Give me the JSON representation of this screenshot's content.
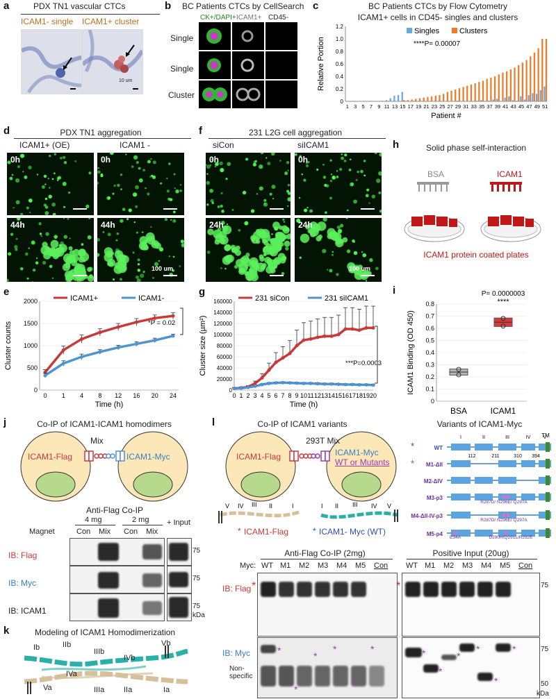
{
  "colors": {
    "red": "#c83a3a",
    "blue": "#4f93d0",
    "orange": "#ee7c2a",
    "lightblue": "#6aa9dd",
    "green": "#2d7f2d",
    "purple": "#9b3bb0",
    "teal": "#3bb0b0"
  },
  "a": {
    "letter": "a",
    "title": "PDX TN1 vascular CTCs",
    "img1_label": "ICAM1- single",
    "img2_label": "ICAM1+ cluster",
    "scale": "10 um"
  },
  "b": {
    "letter": "b",
    "title": "BC Patients CTCs by CellSearch",
    "col1": "CK+/DAPI+",
    "col2": "ICAM1+",
    "col3": "CD45-",
    "rows": [
      "Single",
      "Single",
      "Cluster"
    ]
  },
  "c": {
    "letter": "c",
    "title1": "BC Patients CTCs by Flow Cytometry",
    "title2": "ICAM1+ cells in CD45- singles and clusters",
    "ylabel": "Relative Portion",
    "xlabel": "Patient #",
    "legend": [
      "Singles",
      "Clusters"
    ],
    "pval": "****P= 0.00007",
    "yticks": [
      "0",
      "0.2",
      "0.4",
      "0.6",
      "0.8",
      "1.0",
      "1.2"
    ],
    "xticks": [
      "1",
      "3",
      "5",
      "7",
      "9",
      "11",
      "13",
      "15",
      "17",
      "19",
      "21",
      "23",
      "25",
      "27",
      "29",
      "31",
      "33",
      "35",
      "37",
      "39",
      "41",
      "43",
      "45",
      "47",
      "49",
      "51"
    ]
  },
  "d": {
    "letter": "d",
    "title": "PDX TN1 aggregation",
    "col1": "ICAM1+ (OE)",
    "col2": "ICAM1 -",
    "t0": "0h",
    "t1": "44h",
    "scale": "100 um"
  },
  "f": {
    "letter": "f",
    "title": "231 L2G cell aggregation",
    "col1": "siCon",
    "col2": "siICAM1",
    "t0": "0h",
    "t1": "24h",
    "scale": "100 um"
  },
  "h": {
    "letter": "h",
    "title": "Solid phase self-interaction",
    "lab1": "BSA",
    "lab2": "ICAM1",
    "caption": "ICAM1 protein coated plates"
  },
  "chart_data": [
    {
      "panel": "c",
      "type": "bar",
      "title": "BC Patients CTCs by Flow Cytometry",
      "xlabel": "Patient #",
      "ylabel": "Relative Portion",
      "ylim": [
        0,
        1.2
      ],
      "x": [
        1,
        2,
        3,
        4,
        5,
        6,
        7,
        8,
        9,
        10,
        11,
        12,
        13,
        14,
        15,
        16,
        17,
        18,
        19,
        20,
        21,
        22,
        23,
        24,
        25,
        26,
        27,
        28,
        29,
        30,
        31,
        32,
        33,
        34,
        35,
        36,
        37,
        38,
        39,
        40,
        41,
        42,
        43,
        44,
        45,
        46,
        47,
        48,
        49,
        50,
        51
      ],
      "series": [
        {
          "name": "Singles",
          "values": [
            0,
            0,
            0,
            0,
            0,
            0,
            0,
            0,
            0,
            0.01,
            0.02,
            0.05,
            0.09,
            0.1,
            0.15,
            0,
            0,
            0.01,
            0,
            0,
            0,
            0,
            0,
            0,
            0,
            0,
            0,
            0,
            0.01,
            0,
            0,
            0,
            0,
            0.01,
            0.02,
            0,
            0.01,
            0.03,
            0.04,
            0,
            0.06,
            0.08,
            0.02,
            0.01,
            0.08,
            0.03,
            0.1,
            0.13,
            0.12,
            0.18,
            0.24
          ]
        },
        {
          "name": "Clusters",
          "values": [
            0,
            0,
            0,
            0,
            0,
            0,
            0,
            0,
            0,
            0,
            0,
            0,
            0,
            0,
            0.02,
            0.02,
            0.03,
            0.04,
            0.05,
            0.06,
            0.07,
            0.08,
            0.09,
            0.1,
            0.12,
            0.15,
            0.17,
            0.19,
            0.21,
            0.23,
            0.25,
            0.27,
            0.29,
            0.31,
            0.33,
            0.36,
            0.38,
            0.4,
            0.43,
            0.46,
            0.48,
            0.51,
            0.54,
            0.58,
            0.62,
            0.66,
            0.72,
            0.78,
            0.85,
            1.0,
            1.0
          ]
        }
      ]
    },
    {
      "panel": "e",
      "type": "line",
      "xlabel": "Time (h)",
      "ylabel": "Cluster counts",
      "ylim": [
        0,
        2000
      ],
      "x": [
        0,
        1,
        4,
        8,
        12,
        16,
        20,
        24
      ],
      "pval": "*P = 0.02",
      "series": [
        {
          "name": "ICAM1+",
          "values": [
            400,
            900,
            1150,
            1300,
            1420,
            1530,
            1620,
            1670
          ],
          "err": [
            60,
            90,
            90,
            80,
            80,
            80,
            70,
            70
          ]
        },
        {
          "name": "ICAM1-",
          "values": [
            330,
            600,
            750,
            860,
            960,
            1040,
            1120,
            1220
          ],
          "err": [
            50,
            60,
            60,
            50,
            50,
            50,
            50,
            40
          ]
        }
      ],
      "yticks": [
        "0",
        "500",
        "1000",
        "1500",
        "2000"
      ],
      "xticks": [
        "0",
        "1",
        "4",
        "8",
        "12",
        "16",
        "20",
        "24"
      ]
    },
    {
      "panel": "g",
      "type": "line",
      "xlabel": "Time (h)",
      "ylabel": "Cluster size (µm²)",
      "ylim": [
        0,
        160000
      ],
      "x": [
        0,
        1,
        2,
        3,
        4,
        5,
        6,
        7,
        8,
        9,
        10,
        11,
        12,
        13,
        14,
        15,
        16,
        17,
        18,
        19,
        20
      ],
      "pval": "***P=0.0003",
      "series": [
        {
          "name": "231 siCon",
          "values": [
            3000,
            4000,
            6000,
            12000,
            22000,
            36000,
            50000,
            58000,
            66000,
            80000,
            90000,
            92000,
            95000,
            97000,
            97000,
            100000,
            110000,
            110000,
            108000,
            112000,
            112000
          ]
        },
        {
          "name": "231 siICAM1",
          "values": [
            3000,
            3500,
            5000,
            7000,
            10000,
            12000,
            13000,
            13500,
            13000,
            12500,
            12000,
            12000,
            11500,
            11000,
            11000,
            10500,
            10000,
            10000,
            9500,
            9500,
            9000
          ]
        }
      ],
      "yticks": [
        "0",
        "20000",
        "40000",
        "60000",
        "80000",
        "100000",
        "120000",
        "140000",
        "160000"
      ],
      "xticks": [
        "0",
        "1",
        "2",
        "3",
        "4",
        "5",
        "6",
        "7",
        "8",
        "9",
        "10",
        "11",
        "12",
        "13",
        "14",
        "15",
        "16",
        "17",
        "18",
        "19",
        "20"
      ]
    },
    {
      "panel": "i",
      "type": "box",
      "xlabel": "",
      "ylabel": "ICAM1 Binding (OD 450)",
      "ylim": [
        0,
        0.8
      ],
      "categories": [
        "BSA",
        "ICAM1"
      ],
      "values": [
        0.24,
        0.65
      ],
      "pval": "P= 0.0000003",
      "stars": "****",
      "yticks": [
        "0",
        "0.1",
        "0.2",
        "0.3",
        "0.4",
        "0.5",
        "0.6",
        "0.7",
        "0.8"
      ]
    }
  ],
  "e": {
    "letter": "e",
    "legend1": "ICAM1+",
    "legend2": "ICAM1-"
  },
  "g": {
    "letter": "g",
    "legend1": "231 siCon",
    "legend2": "231 siICAM1"
  },
  "i": {
    "letter": "i"
  },
  "j": {
    "letter": "j",
    "title": "Co-IP of ICAM1-ICAM1 homodimers",
    "mix": "Mix",
    "flag": "ICAM1-Flag",
    "myc": "ICAM1-Myc",
    "coip": "Anti-Flag Co-IP",
    "mg4": "4 mg",
    "mg2": "2 mg",
    "magnet": "Magnet",
    "con": "Con",
    "mixl": "Mix",
    "input": "+ Input",
    "ib1": "IB: Flag",
    "ib2": "IB: Myc",
    "ib3": "IB: ICAM1",
    "m75": "75",
    "kda": "kDa"
  },
  "k": {
    "letter": "k",
    "title": "Modeling of ICAM1 Homodimerization",
    "labels": [
      "Ib",
      "IIb",
      "IIIb",
      "IVb",
      "Vb",
      "IVa",
      "Va",
      "IIIa",
      "IIa",
      "Ia"
    ]
  },
  "l": {
    "letter": "l",
    "title": "Co-IP of ICAM1 variants",
    "mix": "293T Mix",
    "flag": "ICAM1-Flag",
    "myc": "ICAM1-Myc",
    "wtmut": "WT or Mutants",
    "cap1": "ICAM1-Flag",
    "cap2": "ICAM1- Myc (WT)",
    "variants_title": "Variants of ICAM1-Myc",
    "tm": "TM",
    "domains": [
      "I",
      "II",
      "III",
      "IV",
      "V"
    ],
    "nums": [
      "112",
      "211",
      "310",
      "394"
    ],
    "variants": [
      "WT",
      "M1-ΔII",
      "M2-ΔIV",
      "M3-p3",
      "M4-ΔII-IV-p3",
      "M5-p4"
    ],
    "muts": [
      "R287D/ N296E/ Q297A",
      "R287D/ N296E/ Q297A",
      "E34A",
      "D290H/Q291L/R292E"
    ],
    "coip": "Anti-Flag Co-IP (2mg)",
    "input": "Positive Input (20ug)",
    "myc_lab": "Myc:",
    "lanes": [
      "WT",
      "M1",
      "M2",
      "M3",
      "M4",
      "M5",
      "Con"
    ],
    "ibflag": "IB: Flag",
    "ibmyc": "IB: Myc",
    "nonspec": "Non-\nspecific",
    "m75": "75",
    "m50": "50",
    "kda": "kDa"
  }
}
